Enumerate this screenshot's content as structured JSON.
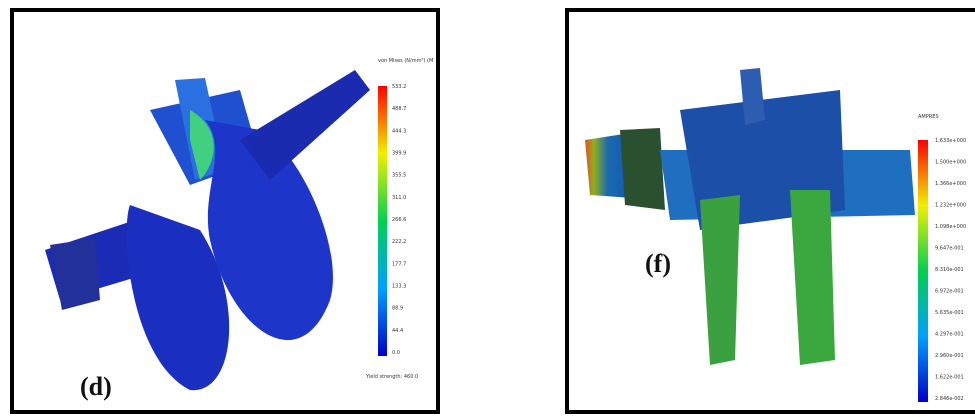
{
  "panels": [
    {
      "label": "(d)",
      "legend_title": "von Mises (N/mm²) (M",
      "ticks": [
        "533.2",
        "488.7",
        "444.3",
        "399.9",
        "355.5",
        "311.0",
        "266.6",
        "222.2",
        "177.7",
        "133.3",
        "88.9",
        "44.4",
        "0.0"
      ],
      "note": "Yield strength: 460.0"
    },
    {
      "label": "(f)",
      "legend_title": "AMPRES",
      "ticks": [
        "1.633e+000",
        "1.500e+000",
        "1.366e+000",
        "1.232e+000",
        "1.098e+000",
        "9.647e-001",
        "8.310e-001",
        "6.972e-001",
        "5.635e-001",
        "4.297e-001",
        "2.960e-001",
        "1.622e-001",
        "2.846e-002"
      ]
    }
  ]
}
